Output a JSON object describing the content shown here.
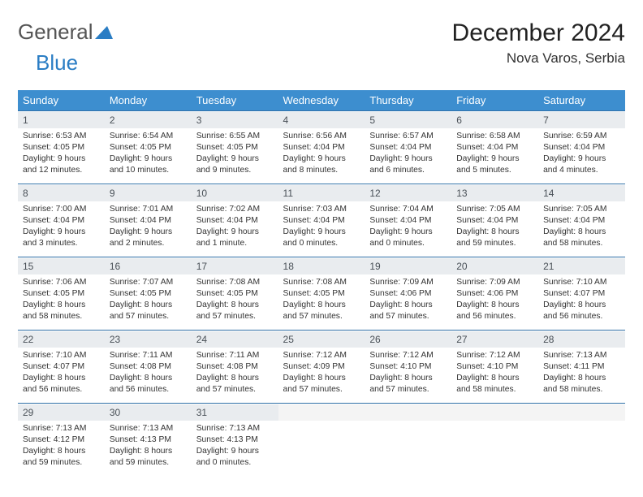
{
  "brand": {
    "part1": "General",
    "part2": "Blue"
  },
  "title": "December 2024",
  "location": "Nova Varos, Serbia",
  "colors": {
    "header_bg": "#3d8ecf",
    "header_text": "#ffffff",
    "daynum_bg": "#e9ecef",
    "rule": "#2f6fa6",
    "brand_blue": "#2a7dc4"
  },
  "weekdays": [
    "Sunday",
    "Monday",
    "Tuesday",
    "Wednesday",
    "Thursday",
    "Friday",
    "Saturday"
  ],
  "weeks": [
    [
      {
        "n": "1",
        "sr": "6:53 AM",
        "ss": "4:05 PM",
        "dh": "9",
        "dm": "12"
      },
      {
        "n": "2",
        "sr": "6:54 AM",
        "ss": "4:05 PM",
        "dh": "9",
        "dm": "10"
      },
      {
        "n": "3",
        "sr": "6:55 AM",
        "ss": "4:05 PM",
        "dh": "9",
        "dm": "9"
      },
      {
        "n": "4",
        "sr": "6:56 AM",
        "ss": "4:04 PM",
        "dh": "9",
        "dm": "8"
      },
      {
        "n": "5",
        "sr": "6:57 AM",
        "ss": "4:04 PM",
        "dh": "9",
        "dm": "6"
      },
      {
        "n": "6",
        "sr": "6:58 AM",
        "ss": "4:04 PM",
        "dh": "9",
        "dm": "5"
      },
      {
        "n": "7",
        "sr": "6:59 AM",
        "ss": "4:04 PM",
        "dh": "9",
        "dm": "4"
      }
    ],
    [
      {
        "n": "8",
        "sr": "7:00 AM",
        "ss": "4:04 PM",
        "dh": "9",
        "dm": "3"
      },
      {
        "n": "9",
        "sr": "7:01 AM",
        "ss": "4:04 PM",
        "dh": "9",
        "dm": "2"
      },
      {
        "n": "10",
        "sr": "7:02 AM",
        "ss": "4:04 PM",
        "dh": "9",
        "dm": "1"
      },
      {
        "n": "11",
        "sr": "7:03 AM",
        "ss": "4:04 PM",
        "dh": "9",
        "dm": "0"
      },
      {
        "n": "12",
        "sr": "7:04 AM",
        "ss": "4:04 PM",
        "dh": "9",
        "dm": "0"
      },
      {
        "n": "13",
        "sr": "7:05 AM",
        "ss": "4:04 PM",
        "dh": "8",
        "dm": "59"
      },
      {
        "n": "14",
        "sr": "7:05 AM",
        "ss": "4:04 PM",
        "dh": "8",
        "dm": "58"
      }
    ],
    [
      {
        "n": "15",
        "sr": "7:06 AM",
        "ss": "4:05 PM",
        "dh": "8",
        "dm": "58"
      },
      {
        "n": "16",
        "sr": "7:07 AM",
        "ss": "4:05 PM",
        "dh": "8",
        "dm": "57"
      },
      {
        "n": "17",
        "sr": "7:08 AM",
        "ss": "4:05 PM",
        "dh": "8",
        "dm": "57"
      },
      {
        "n": "18",
        "sr": "7:08 AM",
        "ss": "4:05 PM",
        "dh": "8",
        "dm": "57"
      },
      {
        "n": "19",
        "sr": "7:09 AM",
        "ss": "4:06 PM",
        "dh": "8",
        "dm": "57"
      },
      {
        "n": "20",
        "sr": "7:09 AM",
        "ss": "4:06 PM",
        "dh": "8",
        "dm": "56"
      },
      {
        "n": "21",
        "sr": "7:10 AM",
        "ss": "4:07 PM",
        "dh": "8",
        "dm": "56"
      }
    ],
    [
      {
        "n": "22",
        "sr": "7:10 AM",
        "ss": "4:07 PM",
        "dh": "8",
        "dm": "56"
      },
      {
        "n": "23",
        "sr": "7:11 AM",
        "ss": "4:08 PM",
        "dh": "8",
        "dm": "56"
      },
      {
        "n": "24",
        "sr": "7:11 AM",
        "ss": "4:08 PM",
        "dh": "8",
        "dm": "57"
      },
      {
        "n": "25",
        "sr": "7:12 AM",
        "ss": "4:09 PM",
        "dh": "8",
        "dm": "57"
      },
      {
        "n": "26",
        "sr": "7:12 AM",
        "ss": "4:10 PM",
        "dh": "8",
        "dm": "57"
      },
      {
        "n": "27",
        "sr": "7:12 AM",
        "ss": "4:10 PM",
        "dh": "8",
        "dm": "58"
      },
      {
        "n": "28",
        "sr": "7:13 AM",
        "ss": "4:11 PM",
        "dh": "8",
        "dm": "58"
      }
    ],
    [
      {
        "n": "29",
        "sr": "7:13 AM",
        "ss": "4:12 PM",
        "dh": "8",
        "dm": "59"
      },
      {
        "n": "30",
        "sr": "7:13 AM",
        "ss": "4:13 PM",
        "dh": "8",
        "dm": "59"
      },
      {
        "n": "31",
        "sr": "7:13 AM",
        "ss": "4:13 PM",
        "dh": "9",
        "dm": "0"
      },
      null,
      null,
      null,
      null
    ]
  ],
  "labels": {
    "sunrise": "Sunrise:",
    "sunset": "Sunset:",
    "daylight": "Daylight:",
    "hours": "hours",
    "and": "and",
    "minutes_suffix": "minutes.",
    "minute_suffix": "minute."
  }
}
